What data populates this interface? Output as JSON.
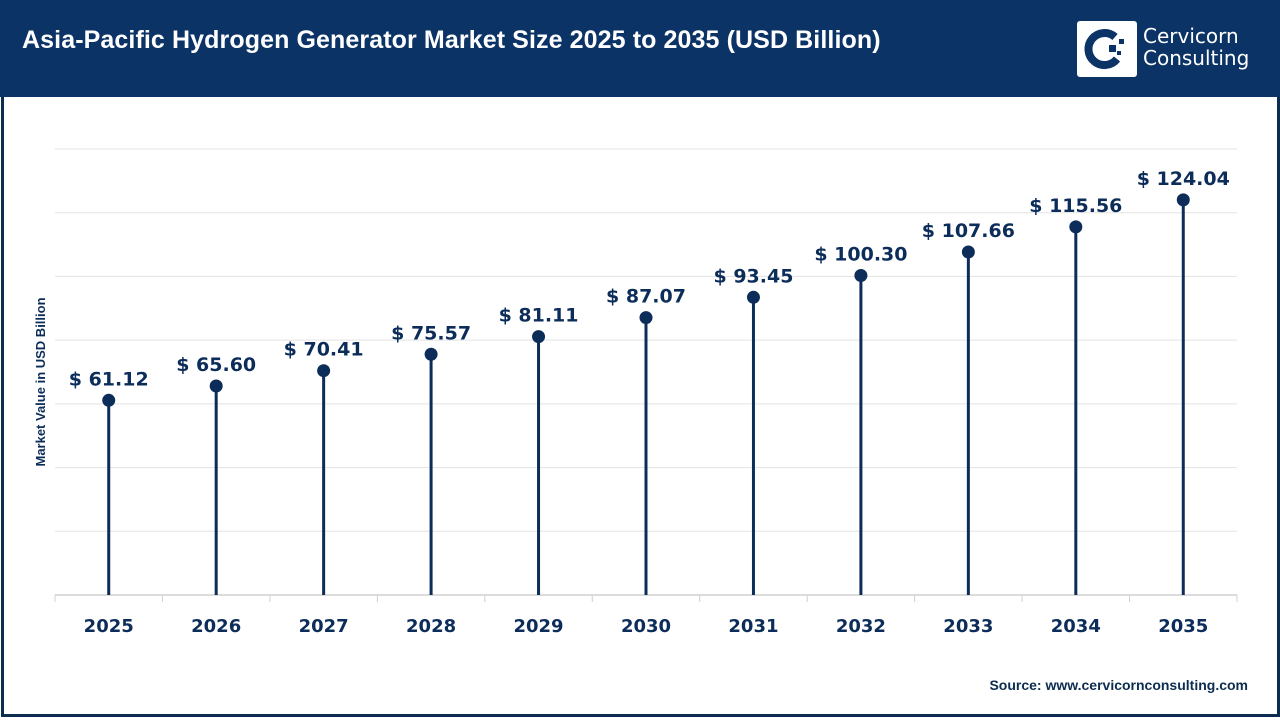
{
  "header": {
    "title": "Asia-Pacific Hydrogen Generator Market Size 2025 to 2035 (USD Billion)",
    "logo_line1": "Cervicorn",
    "logo_line2": "Consulting"
  },
  "source": "Source: www.cervicornconsulting.com",
  "colors": {
    "header": "#0c3366",
    "series": "#0c2d5a",
    "grid": "#e3e3e3"
  },
  "chart_data": {
    "type": "lollipop",
    "title": "Asia-Pacific Hydrogen Generator Market Size 2025 to 2035 (USD Billion)",
    "xlabel": "",
    "ylabel": "Market Value in USD Billion",
    "categories": [
      "2025",
      "2026",
      "2027",
      "2028",
      "2029",
      "2030",
      "2031",
      "2032",
      "2033",
      "2034",
      "2035"
    ],
    "values": [
      61.12,
      65.6,
      70.41,
      75.57,
      81.11,
      87.07,
      93.45,
      100.3,
      107.66,
      115.56,
      124.04
    ],
    "labels": [
      "$ 61.12",
      "$ 65.60",
      "$ 70.41",
      "$ 75.57",
      "$ 81.11",
      "$ 87.07",
      "$ 93.45",
      "$ 100.30",
      "$ 107.66",
      "$ 115.56",
      "$ 124.04"
    ],
    "ylim": [
      0,
      140
    ],
    "grid": true,
    "y_tick_labels_shown": false
  }
}
